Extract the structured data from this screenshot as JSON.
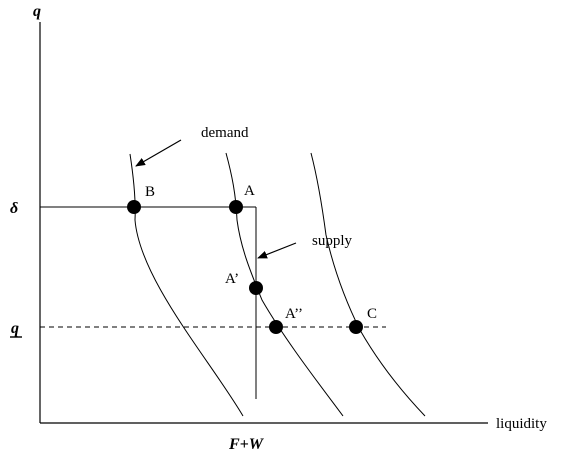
{
  "axes": {
    "y_label": "q",
    "x_label": "liquidity",
    "x_tick": "F+W",
    "y_ticks": {
      "delta": "δ",
      "q_bar": "q"
    }
  },
  "annotations": {
    "demand": "demand",
    "supply": "supply"
  },
  "points": {
    "B": "B",
    "A": "A",
    "A_prime": "A’",
    "A_double_prime": "A’’",
    "C": "C"
  },
  "colors": {
    "ink": "#000000",
    "background": "#ffffff"
  }
}
